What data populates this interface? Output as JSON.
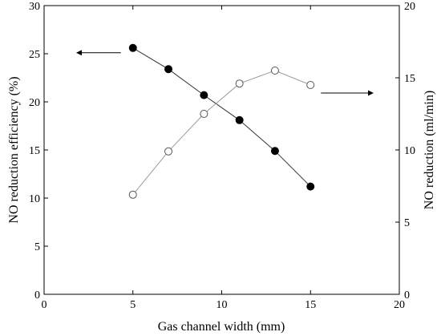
{
  "chart_data": {
    "type": "line",
    "xlabel": "Gas channel width (mm)",
    "ylabel_left": "NO reduction efficiency (%)",
    "ylabel_right": "NO reduction (ml/min)",
    "x_range": [
      0,
      20
    ],
    "y_left_range": [
      0,
      30
    ],
    "y_right_range": [
      0,
      20
    ],
    "x_ticks": [
      "0",
      "5",
      "10",
      "15",
      "20"
    ],
    "y_left_ticks": [
      "0",
      "5",
      "10",
      "15",
      "20",
      "25",
      "30"
    ],
    "y_right_ticks": [
      "0",
      "5",
      "10",
      "15",
      "20"
    ],
    "grid": false,
    "series": [
      {
        "axis": "left",
        "marker": "filled-circle",
        "x": [
          5,
          7,
          9,
          11,
          13,
          15
        ],
        "y": [
          25.6,
          23.4,
          20.7,
          18.1,
          14.9,
          11.2
        ]
      },
      {
        "axis": "right",
        "marker": "open-circle",
        "x": [
          5,
          7,
          9,
          11,
          13,
          15
        ],
        "y": [
          6.9,
          9.9,
          12.5,
          14.6,
          15.5,
          14.5
        ]
      }
    ],
    "annotations": [
      {
        "type": "arrow",
        "direction": "left",
        "points_to": "left-axis",
        "series": "left"
      },
      {
        "type": "arrow",
        "direction": "right",
        "points_to": "right-axis",
        "series": "right"
      }
    ]
  },
  "colors": {
    "axis": "#000000",
    "series_left_line": "#333333",
    "series_left_marker": "#000000",
    "series_right_line": "#9a9a9a",
    "series_right_marker_stroke": "#555555",
    "background": "#ffffff"
  }
}
